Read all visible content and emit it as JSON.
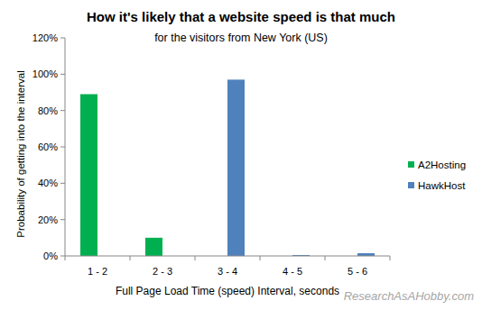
{
  "chart_data": {
    "type": "bar",
    "title": "How it's likely that a website speed is that much",
    "subtitle": "for the visitors from New York (US)",
    "x_label": "Full Page Load Time (speed)  Interval, seconds",
    "y_label": "Probability of getting into the interval",
    "annotations": [
      "ResearchAsAHobby.com"
    ],
    "categories": [
      "1 - 2",
      "2 - 3",
      "3 - 4",
      "4 - 5",
      "5 - 6"
    ],
    "series": [
      {
        "name": "A2Hosting",
        "color": "#00b050",
        "values": [
          89,
          10,
          0,
          0,
          0
        ]
      },
      {
        "name": "HawkHost",
        "color": "#4f81bd",
        "values": [
          0,
          0,
          97,
          0.5,
          1.5
        ]
      }
    ],
    "ylim": [
      0,
      120
    ],
    "yticks": [
      {
        "value": 0,
        "label": "0%"
      },
      {
        "value": 20,
        "label": "20%"
      },
      {
        "value": 40,
        "label": "40%"
      },
      {
        "value": 60,
        "label": "60%"
      },
      {
        "value": 80,
        "label": "80%"
      },
      {
        "value": 100,
        "label": "100%"
      },
      {
        "value": 120,
        "label": "120%"
      }
    ],
    "grid": false,
    "legend": "right"
  }
}
